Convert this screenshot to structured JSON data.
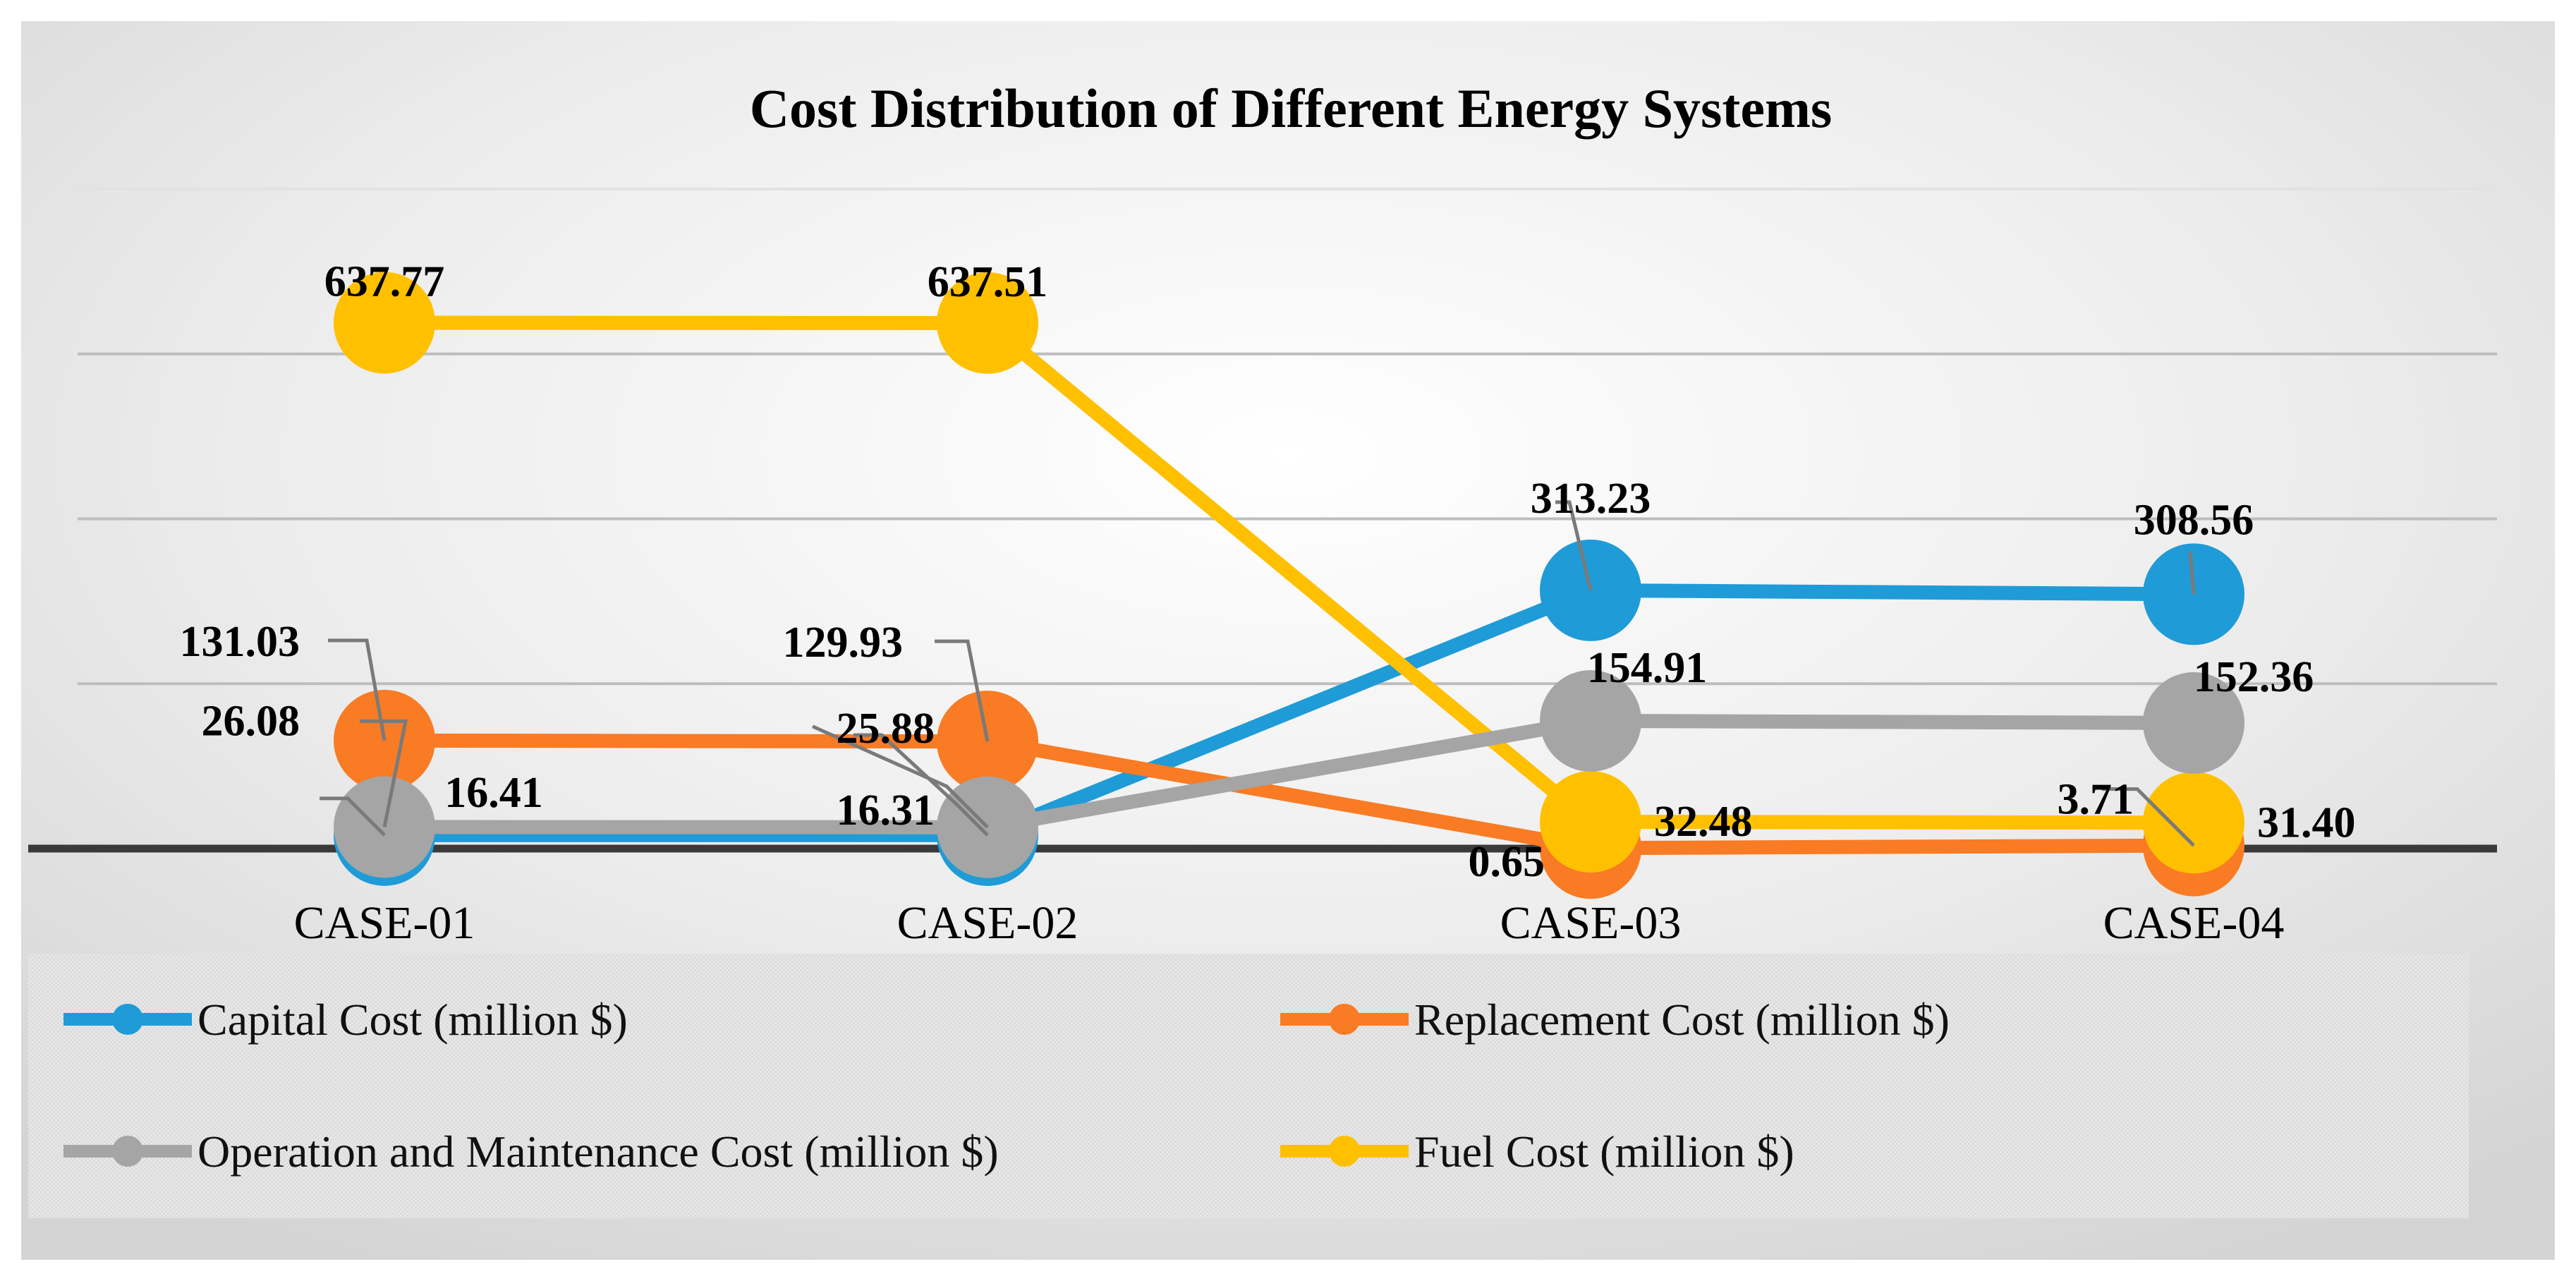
{
  "chart_data": {
    "type": "line",
    "title": "Cost Distribution of Different Energy Systems",
    "categories": [
      "CASE-01",
      "CASE-02",
      "CASE-03",
      "CASE-04"
    ],
    "ylim": [
      0,
      800
    ],
    "grid": true,
    "legend_position": "bottom",
    "series": [
      {
        "name": "Capital Cost (million $)",
        "color": "#1F9BD7",
        "values": [
          16.41,
          16.31,
          313.23,
          308.56
        ],
        "labels": [
          "16.41",
          "16.31",
          "313.23",
          "308.56"
        ]
      },
      {
        "name": "Replacement Cost (million $)",
        "color": "#F97B24",
        "values": [
          131.03,
          129.93,
          0.65,
          3.71
        ],
        "labels": [
          "131.03",
          "129.93",
          "0.65",
          "3.71"
        ]
      },
      {
        "name": "Operation and Maintenance Cost (million $)",
        "color": "#A5A5A5",
        "values": [
          26.08,
          25.88,
          154.91,
          152.36
        ],
        "labels": [
          "26.08",
          "25.88",
          "154.91",
          "152.36"
        ]
      },
      {
        "name": "Fuel Cost (million $)",
        "color": "#FFC000",
        "values": [
          637.77,
          637.51,
          32.48,
          31.4
        ],
        "labels": [
          "637.77",
          "637.51",
          "32.48",
          "31.40"
        ]
      }
    ]
  }
}
